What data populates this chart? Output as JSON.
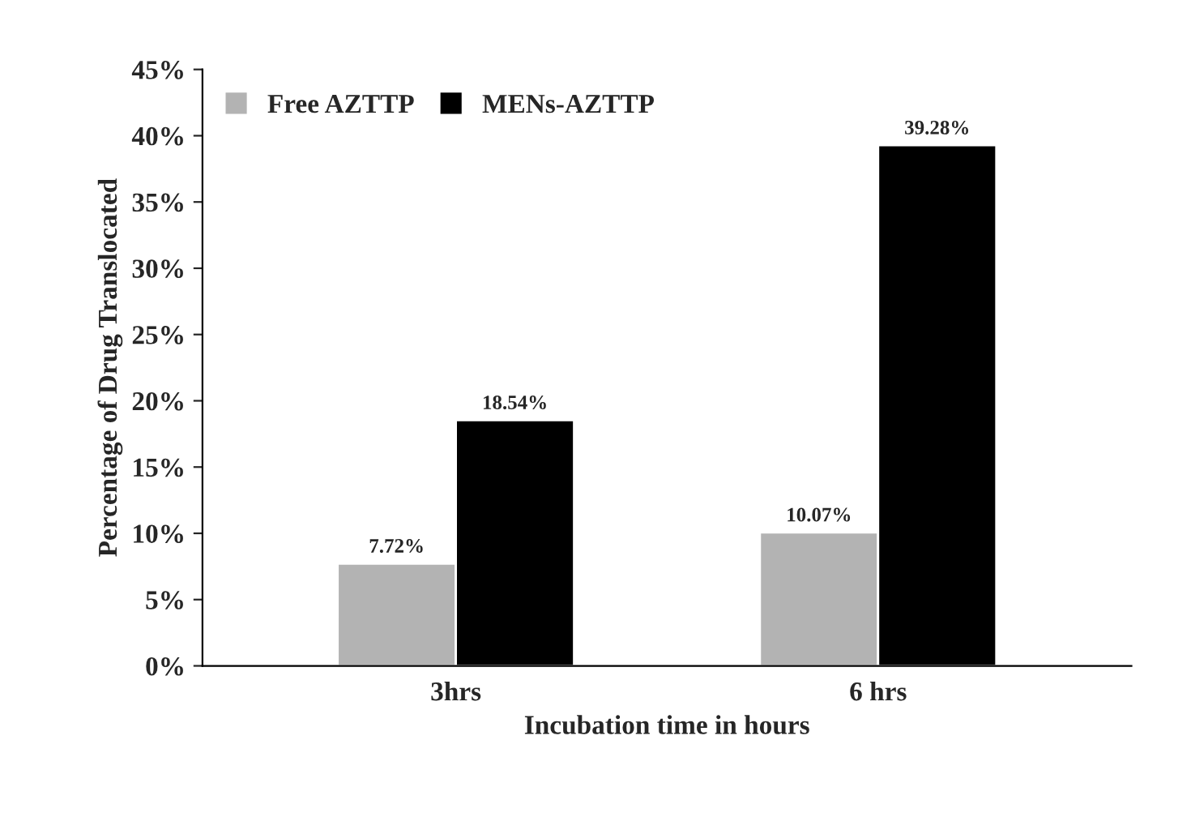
{
  "chart_data": {
    "type": "bar",
    "xlabel": "Incubation time in hours",
    "ylabel": "Percentage of Drug Translocated",
    "categories": [
      "3hrs",
      "6 hrs"
    ],
    "series": [
      {
        "name": "Free AZTTP",
        "color": "#b3b3b3",
        "values": [
          7.72,
          10.07
        ],
        "value_labels": [
          "7.72%",
          "10.07%"
        ]
      },
      {
        "name": "MENs-AZTTP",
        "color": "#000000",
        "values": [
          18.54,
          39.28
        ],
        "value_labels": [
          "18.54%",
          "39.28%"
        ]
      }
    ],
    "ylim": [
      0,
      45
    ],
    "yticks": [
      {
        "value": 0,
        "label": "0%"
      },
      {
        "value": 5,
        "label": "5%"
      },
      {
        "value": 10,
        "label": "10%"
      },
      {
        "value": 15,
        "label": "15%"
      },
      {
        "value": 20,
        "label": "20%"
      },
      {
        "value": 25,
        "label": "25%"
      },
      {
        "value": 30,
        "label": "30%"
      },
      {
        "value": 35,
        "label": "35%"
      },
      {
        "value": 40,
        "label": "40%"
      },
      {
        "value": 45,
        "label": "45%"
      }
    ],
    "grid": false,
    "legend": "top left"
  }
}
